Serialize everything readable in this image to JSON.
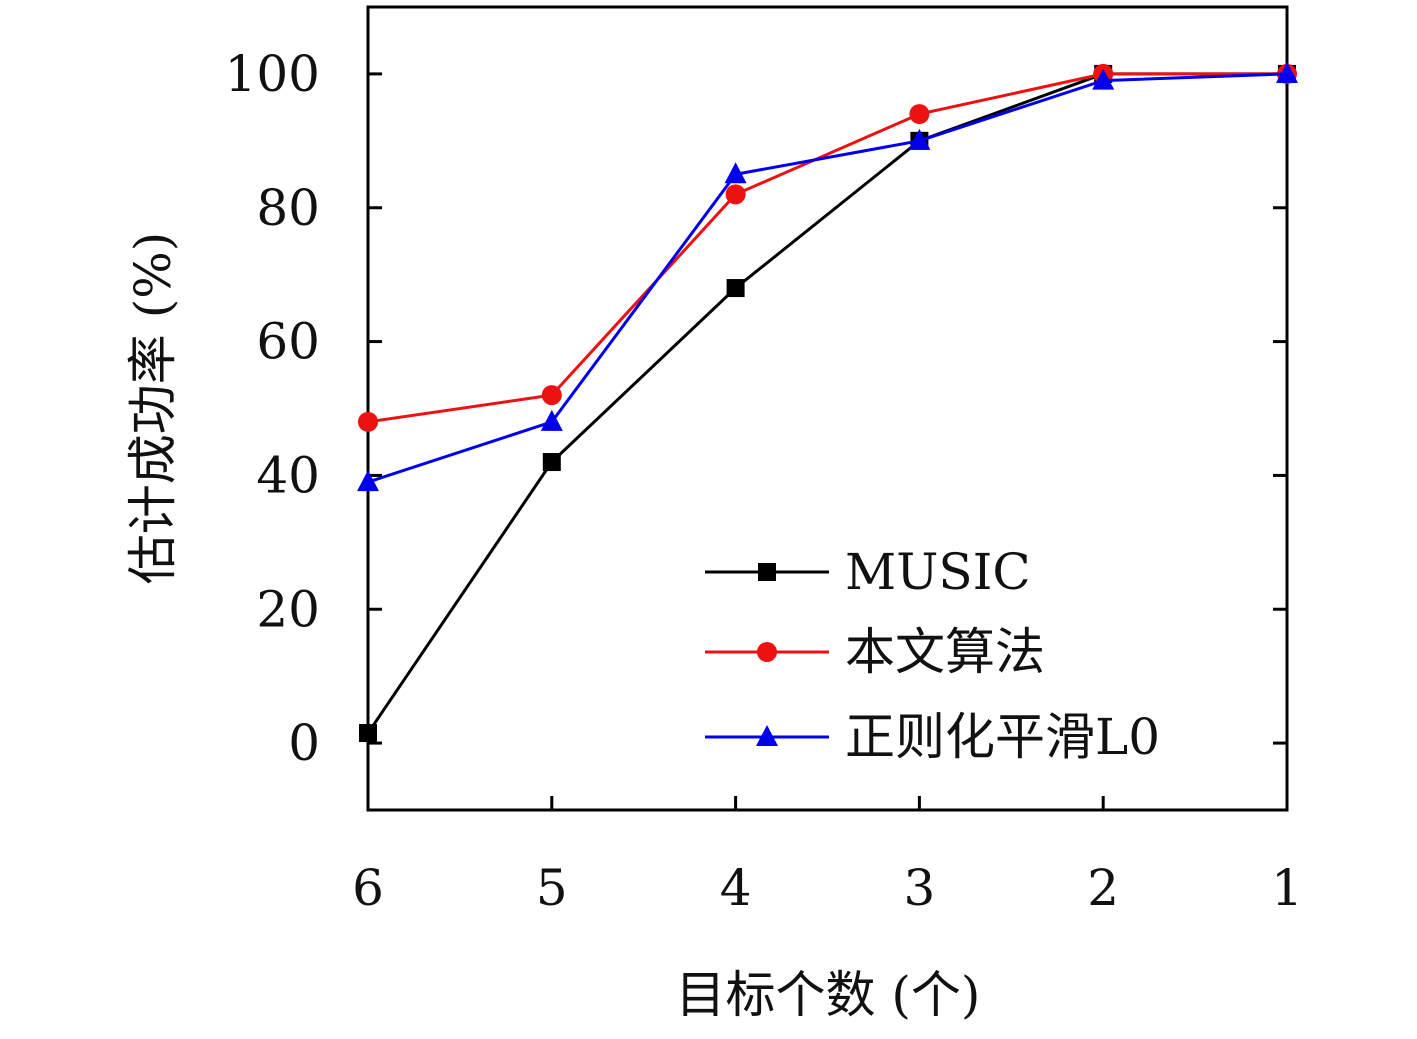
{
  "chart_data": {
    "type": "line",
    "title": "",
    "xlabel": "目标个数 (个)",
    "ylabel": "估计成功率 (%)",
    "categories": [
      "6",
      "5",
      "4",
      "3",
      "2",
      "1"
    ],
    "yticks": [
      "0",
      "20",
      "40",
      "60",
      "80",
      "100"
    ],
    "ylim": [
      -10,
      110
    ],
    "grid": false,
    "legend_position": "bottom-right",
    "series": [
      {
        "name": "MUSIC",
        "values": [
          1.5,
          42,
          68,
          90,
          100,
          100
        ],
        "color": "#000000",
        "marker": "square"
      },
      {
        "name": "本文算法",
        "values": [
          48,
          52,
          82,
          94,
          100,
          100
        ],
        "color": "#ee1111",
        "marker": "circle"
      },
      {
        "name": "正则化平滑L0",
        "values": [
          39,
          48,
          85,
          90,
          99,
          100
        ],
        "color": "#0000ee",
        "marker": "triangle"
      }
    ]
  }
}
